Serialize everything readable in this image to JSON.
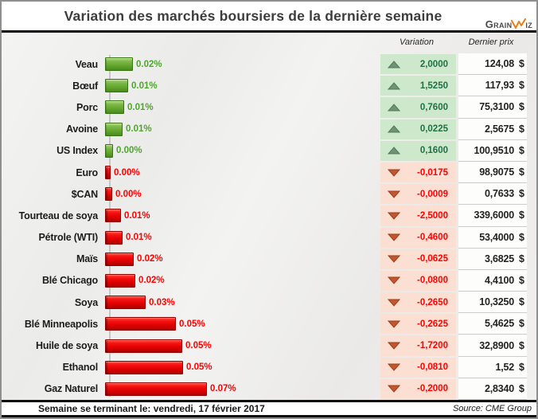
{
  "title": "Variation des marchés boursiers de la dernière semaine",
  "logo": {
    "left": "Grain",
    "right": "iz",
    "accent_color": "#ee7d11"
  },
  "columns": {
    "variation": "Variation",
    "price": "Dernier prix"
  },
  "currency": "$",
  "footer": {
    "left": "Semaine se terminant le: vendredi, 17 février 2017",
    "right": "Source: CME Group"
  },
  "colors": {
    "title_text": "#3d3d3d",
    "bar_green": "#63a52e",
    "bar_red": "#e00000",
    "pct_green": "#4ea72c",
    "pct_red": "#ff0000",
    "variation_bg_up": "#cde8ca",
    "variation_bg_down": "#fbdfd3",
    "variation_text_up": "#1e7145",
    "variation_text_down": "#ff0000",
    "triangle_up": "#6f9377",
    "triangle_down": "#c3562e"
  },
  "chart_data": {
    "type": "bar",
    "orientation": "horizontal",
    "note": "bar length proportional to |variation|/price ratio; pct is the rounded label shown next to each bar",
    "rows": [
      {
        "label": "Veau",
        "pct": "0.02%",
        "direction": "up",
        "variation": "2,0000",
        "price": "124,08",
        "ratio": 0.0161
      },
      {
        "label": "Bœuf",
        "pct": "0.01%",
        "direction": "up",
        "variation": "1,5250",
        "price": "117,93",
        "ratio": 0.0129
      },
      {
        "label": "Porc",
        "pct": "0.01%",
        "direction": "up",
        "variation": "0,7600",
        "price": "75,3100",
        "ratio": 0.0101
      },
      {
        "label": "Avoine",
        "pct": "0.01%",
        "direction": "up",
        "variation": "0,0225",
        "price": "2,5675",
        "ratio": 0.0088
      },
      {
        "label": "US Index",
        "pct": "0.00%",
        "direction": "up",
        "variation": "0,1600",
        "price": "100,9510",
        "ratio": 0.0016
      },
      {
        "label": "Euro",
        "pct": "0.00%",
        "direction": "down",
        "variation": "-0,0175",
        "price": "98,9075",
        "ratio": 0.0002
      },
      {
        "label": "$CAN",
        "pct": "0.00%",
        "direction": "down",
        "variation": "-0,0009",
        "price": "0,7633",
        "ratio": 0.0012
      },
      {
        "label": "Tourteau de soya",
        "pct": "0.01%",
        "direction": "down",
        "variation": "-2,5000",
        "price": "339,6000",
        "ratio": 0.0074
      },
      {
        "label": "Pétrole (WTI)",
        "pct": "0.01%",
        "direction": "down",
        "variation": "-0,4600",
        "price": "53,4000",
        "ratio": 0.0086
      },
      {
        "label": "Maïs",
        "pct": "0.02%",
        "direction": "down",
        "variation": "-0,0625",
        "price": "3,6825",
        "ratio": 0.017
      },
      {
        "label": "Blé Chicago",
        "pct": "0.02%",
        "direction": "down",
        "variation": "-0,0800",
        "price": "4,4100",
        "ratio": 0.0181
      },
      {
        "label": "Soya",
        "pct": "0.03%",
        "direction": "down",
        "variation": "-0,2650",
        "price": "10,3250",
        "ratio": 0.0257
      },
      {
        "label": "Blé Minneapolis",
        "pct": "0.05%",
        "direction": "down",
        "variation": "-0,2625",
        "price": "5,4625",
        "ratio": 0.0481
      },
      {
        "label": "Huile de soya",
        "pct": "0.05%",
        "direction": "down",
        "variation": "-1,7200",
        "price": "32,8900",
        "ratio": 0.0523
      },
      {
        "label": "Ethanol",
        "pct": "0.05%",
        "direction": "down",
        "variation": "-0,0810",
        "price": "1,52",
        "ratio": 0.0533
      },
      {
        "label": "Gaz Naturel",
        "pct": "0.07%",
        "direction": "down",
        "variation": "-0,2000",
        "price": "2,8340",
        "ratio": 0.0706
      }
    ]
  }
}
